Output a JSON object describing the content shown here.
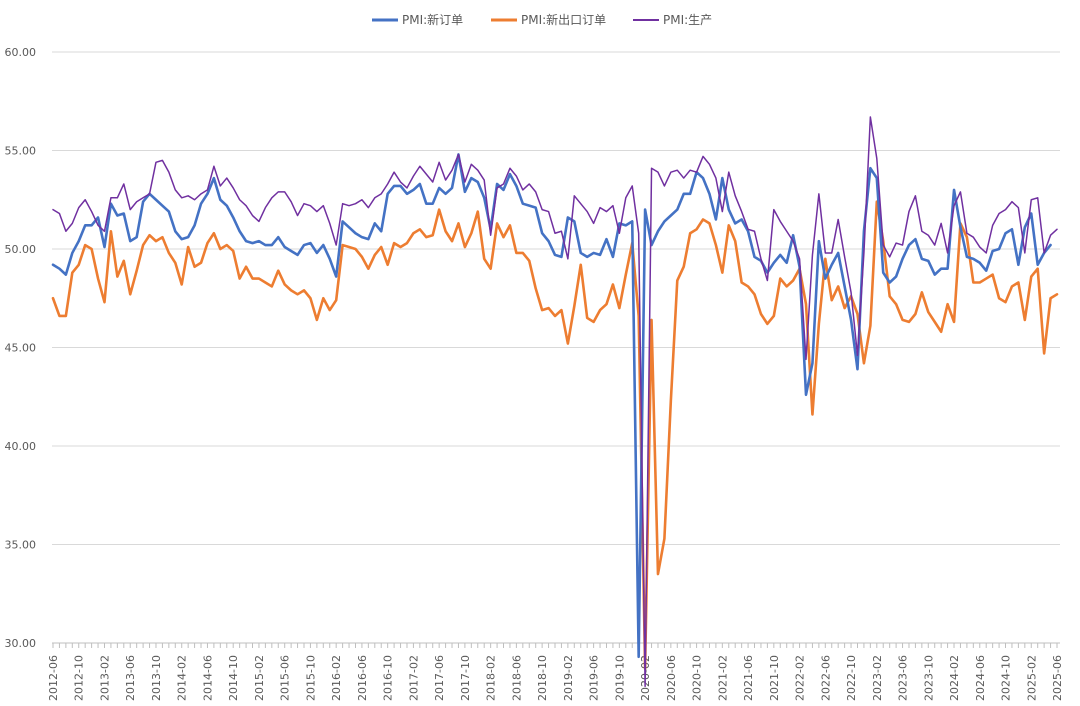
{
  "chart_data": {
    "type": "line",
    "title": "",
    "xlabel": "",
    "ylabel": "",
    "ylim": [
      30,
      60
    ],
    "yticks": [
      "30.00",
      "35.00",
      "40.00",
      "45.00",
      "50.00",
      "55.00",
      "60.00"
    ],
    "grid": "horizontal",
    "legend_position": "top",
    "x_tick_labels": [
      "2012-06",
      "2012-10",
      "2013-02",
      "2013-06",
      "2013-10",
      "2014-02",
      "2014-06",
      "2014-10",
      "2015-02",
      "2015-06",
      "2015-10",
      "2016-02",
      "2016-06",
      "2016-10",
      "2017-02",
      "2017-06",
      "2017-10",
      "2018-02",
      "2018-06",
      "2018-10",
      "2019-02",
      "2019-06",
      "2019-10",
      "2020-02",
      "2020-06",
      "2020-10",
      "2021-02",
      "2021-06",
      "2021-10",
      "2022-02",
      "2022-06",
      "2022-10",
      "2023-02",
      "2023-06",
      "2023-10",
      "2024-02",
      "2024-06",
      "2024-10",
      "2025-02",
      "2025-06"
    ],
    "x_start": "2012-06",
    "x_end": "2025-06",
    "series": [
      {
        "name": "PMI:新订单",
        "color": "#4472C4",
        "values": [
          49.2,
          49.0,
          48.7,
          49.8,
          50.4,
          51.2,
          51.2,
          51.6,
          50.1,
          52.3,
          51.7,
          51.8,
          50.4,
          50.6,
          52.4,
          52.8,
          52.5,
          52.2,
          51.9,
          50.9,
          50.5,
          50.6,
          51.2,
          52.3,
          52.8,
          53.6,
          52.5,
          52.2,
          51.6,
          50.9,
          50.4,
          50.3,
          50.4,
          50.2,
          50.2,
          50.6,
          50.1,
          49.9,
          49.7,
          50.2,
          50.3,
          49.8,
          50.2,
          49.5,
          48.6,
          51.4,
          51.1,
          50.8,
          50.6,
          50.5,
          51.3,
          50.9,
          52.8,
          53.2,
          53.2,
          52.8,
          53.0,
          53.3,
          52.3,
          52.3,
          53.1,
          52.8,
          53.1,
          54.8,
          52.9,
          53.6,
          53.4,
          52.6,
          51.0,
          53.3,
          53.0,
          53.8,
          53.2,
          52.3,
          52.2,
          52.1,
          50.8,
          50.4,
          49.7,
          49.6,
          51.6,
          51.4,
          49.8,
          49.6,
          49.8,
          49.7,
          50.5,
          49.6,
          51.3,
          51.2,
          51.4,
          29.3,
          52.0,
          50.2,
          50.9,
          51.4,
          51.7,
          52.0,
          52.8,
          52.8,
          53.9,
          53.6,
          52.8,
          51.5,
          53.6,
          52.0,
          51.3,
          51.5,
          50.9,
          49.6,
          49.4,
          48.8,
          49.3,
          49.7,
          49.3,
          50.7,
          49.1,
          42.6,
          44.2,
          50.4,
          48.5,
          49.2,
          49.8,
          48.1,
          46.4,
          43.9,
          50.9,
          54.1,
          53.6,
          48.8,
          48.3,
          48.6,
          49.5,
          50.2,
          50.5,
          49.5,
          49.4,
          48.7,
          49.0,
          49.0,
          53.0,
          51.1,
          49.6,
          49.5,
          49.3,
          48.9,
          49.9,
          50.0,
          50.8,
          51.0,
          49.2,
          51.1,
          51.8,
          49.2,
          49.8,
          50.2
        ]
      },
      {
        "name": "PMI:新出口订单",
        "color": "#ED7D31",
        "values": [
          47.5,
          46.6,
          46.6,
          48.8,
          49.2,
          50.2,
          50.0,
          48.5,
          47.3,
          50.9,
          48.6,
          49.4,
          47.7,
          48.9,
          50.2,
          50.7,
          50.4,
          50.6,
          49.8,
          49.3,
          48.2,
          50.1,
          49.1,
          49.3,
          50.3,
          50.8,
          50.0,
          50.2,
          49.9,
          48.5,
          49.1,
          48.5,
          48.5,
          48.3,
          48.1,
          48.9,
          48.2,
          47.9,
          47.7,
          47.9,
          47.5,
          46.4,
          47.5,
          46.9,
          47.4,
          50.2,
          50.1,
          50.0,
          49.6,
          49.0,
          49.7,
          50.1,
          49.2,
          50.3,
          50.1,
          50.3,
          50.8,
          51.0,
          50.6,
          50.7,
          52.0,
          50.9,
          50.4,
          51.3,
          50.1,
          50.8,
          51.9,
          49.5,
          49.0,
          51.3,
          50.6,
          51.2,
          49.8,
          49.8,
          49.4,
          48.0,
          46.9,
          47.0,
          46.6,
          46.9,
          45.2,
          47.1,
          49.2,
          46.5,
          46.3,
          46.9,
          47.2,
          48.2,
          47.0,
          48.7,
          50.3,
          46.6,
          28.7,
          46.4,
          33.5,
          35.3,
          42.3,
          48.4,
          49.1,
          50.8,
          51.0,
          51.5,
          51.3,
          50.2,
          48.8,
          51.2,
          50.4,
          48.3,
          48.1,
          47.7,
          46.7,
          46.2,
          46.6,
          48.5,
          48.1,
          48.4,
          49.0,
          47.2,
          41.6,
          46.2,
          49.5,
          47.4,
          48.1,
          47.0,
          47.6,
          46.7,
          44.2,
          46.1,
          52.4,
          50.4,
          47.6,
          47.2,
          46.4,
          46.3,
          46.7,
          47.8,
          46.8,
          46.3,
          45.8,
          47.2,
          46.3,
          51.3,
          50.6,
          48.3,
          48.3,
          48.5,
          48.7,
          47.5,
          47.3,
          48.1,
          48.3,
          46.4,
          48.6,
          49.0,
          44.7,
          47.5,
          47.7
        ]
      },
      {
        "name": "PMI:生产",
        "color": "#7030A0",
        "values": [
          52.0,
          51.8,
          50.9,
          51.3,
          52.1,
          52.5,
          51.9,
          51.2,
          50.9,
          52.6,
          52.6,
          53.3,
          52.0,
          52.4,
          52.6,
          52.8,
          54.4,
          54.5,
          53.9,
          53.0,
          52.6,
          52.7,
          52.5,
          52.8,
          53.0,
          54.2,
          53.2,
          53.6,
          53.1,
          52.5,
          52.2,
          51.7,
          51.4,
          52.1,
          52.6,
          52.9,
          52.9,
          52.4,
          51.7,
          52.3,
          52.2,
          51.9,
          52.2,
          51.3,
          50.2,
          52.3,
          52.2,
          52.3,
          52.5,
          52.1,
          52.6,
          52.8,
          53.3,
          53.9,
          53.4,
          53.1,
          53.7,
          54.2,
          53.8,
          53.4,
          54.4,
          53.5,
          54.0,
          54.8,
          53.4,
          54.3,
          54.0,
          53.5,
          50.7,
          53.1,
          53.3,
          54.1,
          53.7,
          53.0,
          53.3,
          52.9,
          52.0,
          51.9,
          50.8,
          50.9,
          49.5,
          52.7,
          52.3,
          51.9,
          51.3,
          52.1,
          51.9,
          52.2,
          50.8,
          52.6,
          53.2,
          50.8,
          27.8,
          54.1,
          53.9,
          53.2,
          53.9,
          54.0,
          53.6,
          54.0,
          53.9,
          54.7,
          54.3,
          53.6,
          51.9,
          53.9,
          52.7,
          51.9,
          51.0,
          50.9,
          49.5,
          48.4,
          52.0,
          51.4,
          50.9,
          50.4,
          49.5,
          44.4,
          49.7,
          52.8,
          49.8,
          49.8,
          51.5,
          49.6,
          47.8,
          44.6,
          49.8,
          56.7,
          54.6,
          50.2,
          49.6,
          50.3,
          50.2,
          51.9,
          52.7,
          50.9,
          50.7,
          50.2,
          51.3,
          49.8,
          52.2,
          52.9,
          50.8,
          50.6,
          50.1,
          49.8,
          51.2,
          51.8,
          52.0,
          52.4,
          52.1,
          49.8,
          52.5,
          52.6,
          49.8,
          50.7,
          51.0
        ]
      }
    ]
  }
}
